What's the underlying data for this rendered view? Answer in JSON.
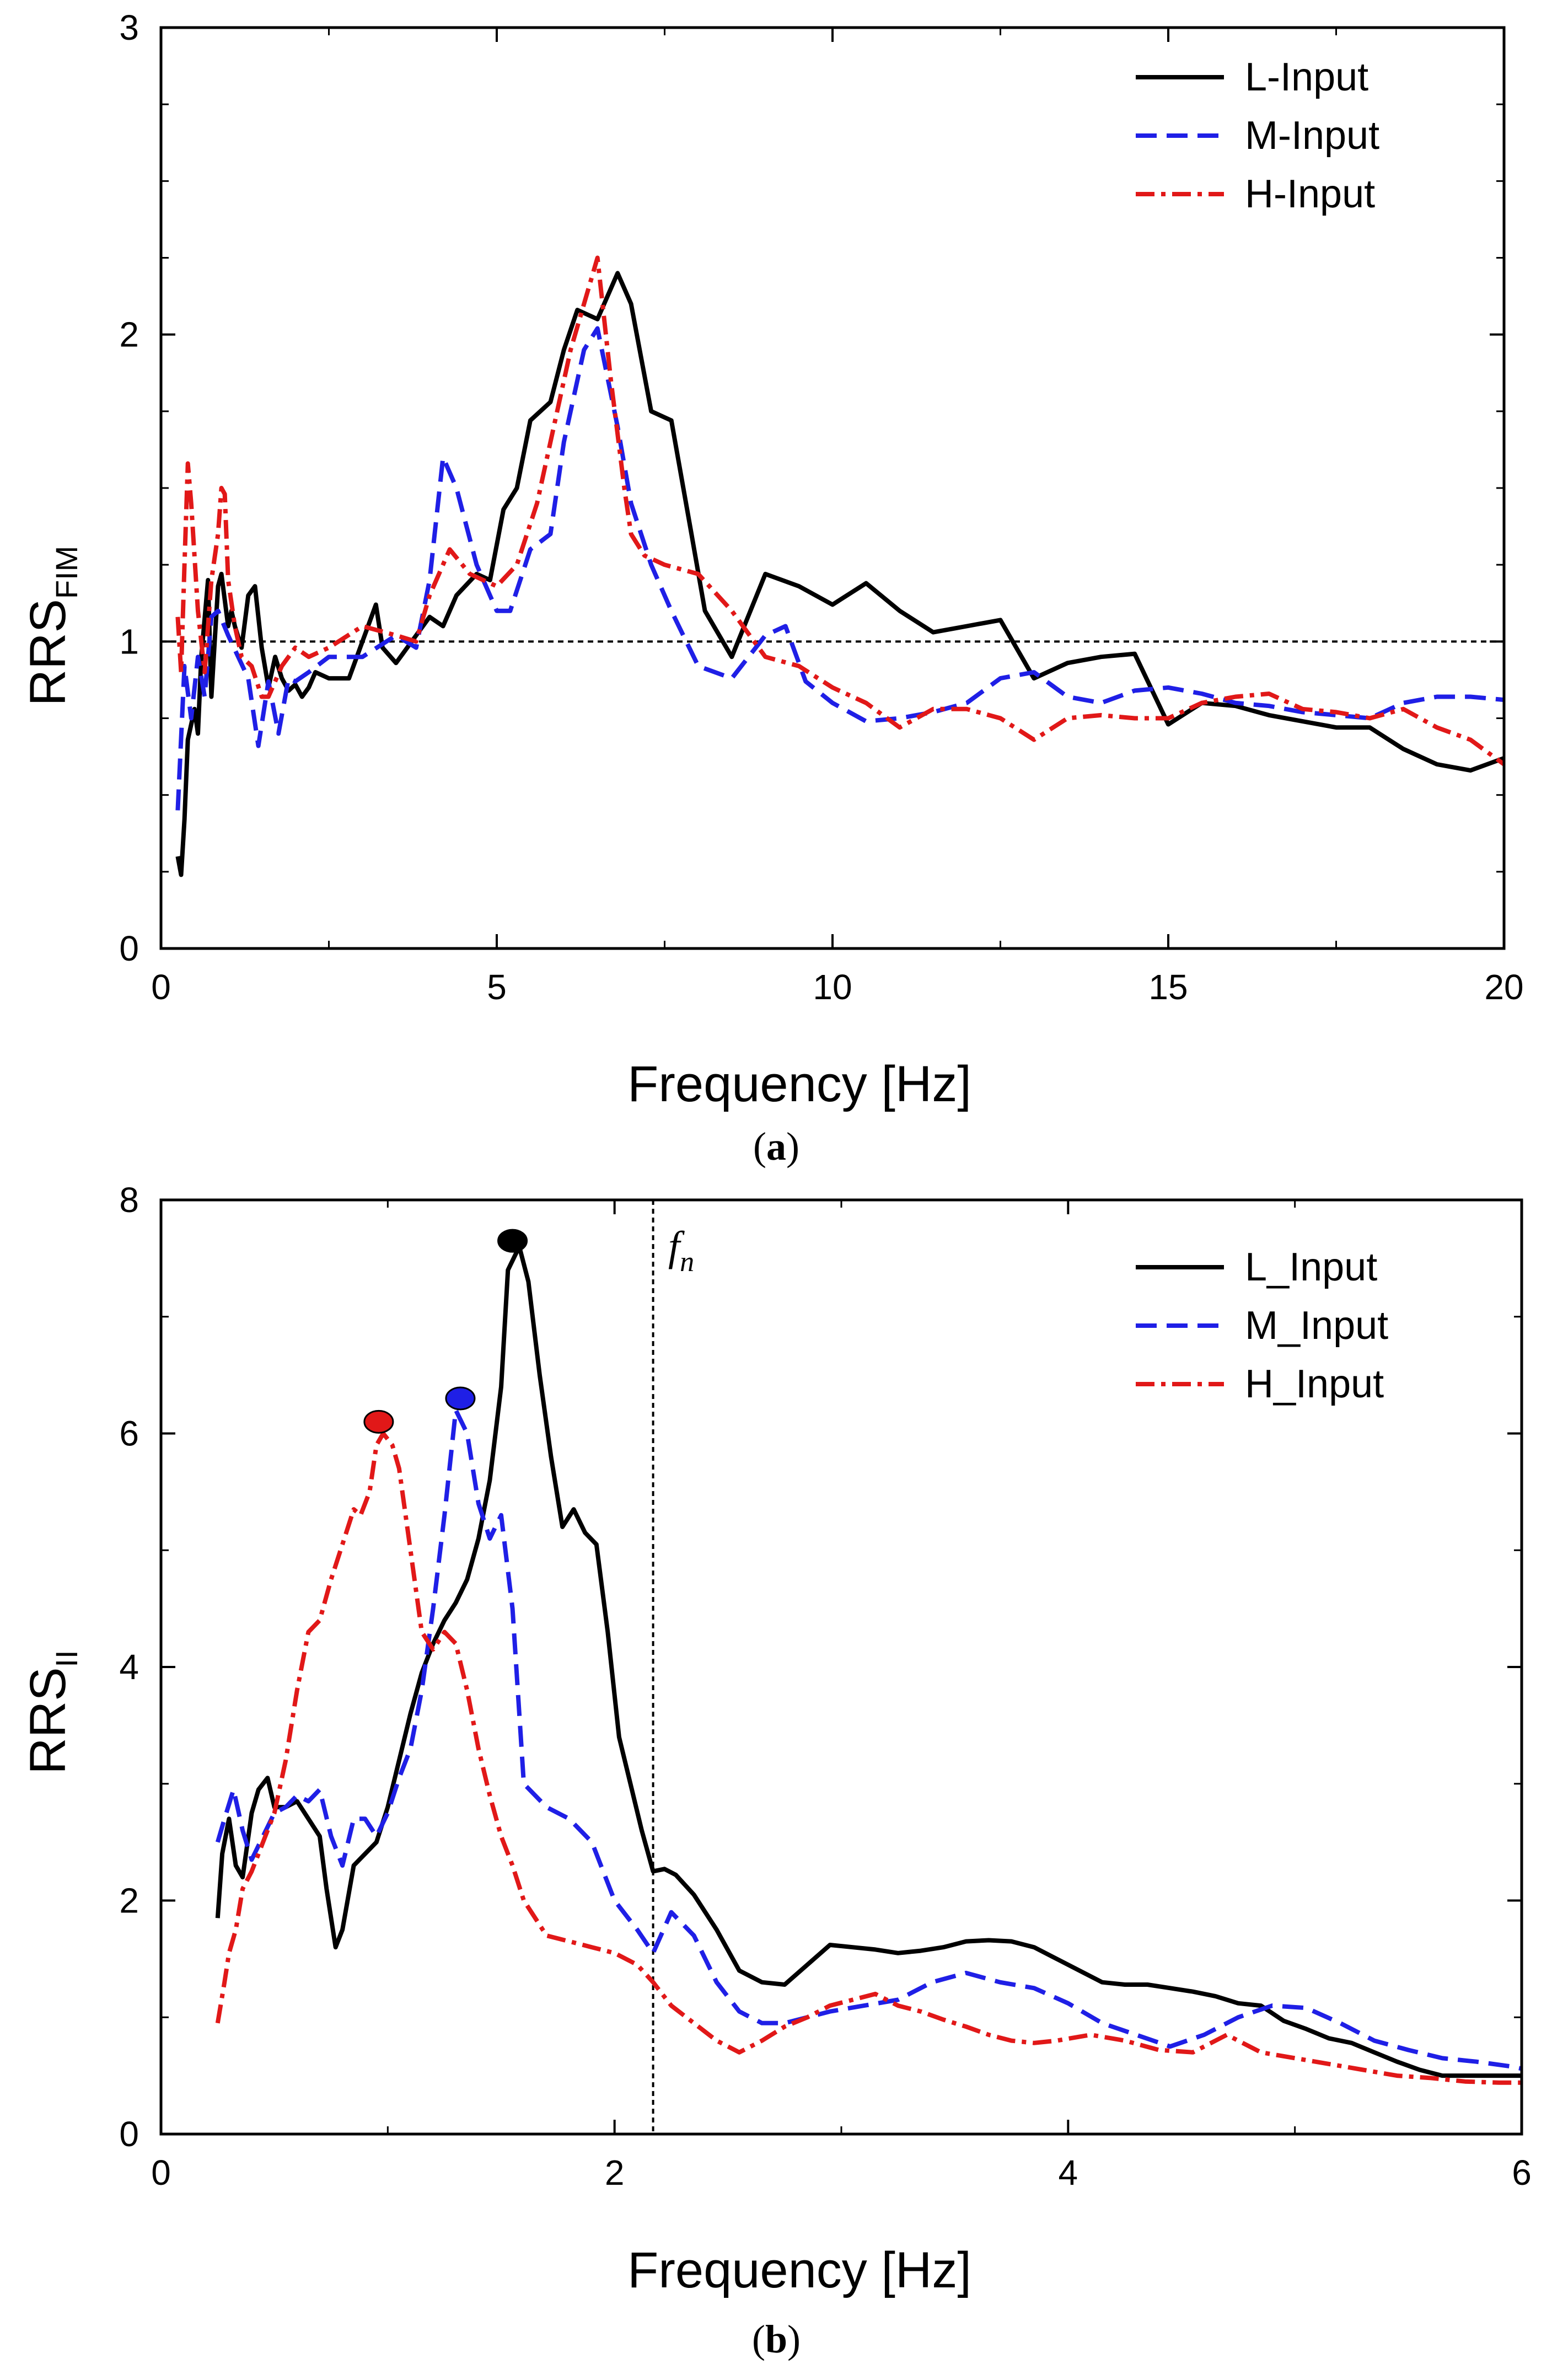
{
  "chart_data": [
    {
      "type": "line",
      "panel_label": "a",
      "xlabel": "Frequency [Hz]",
      "ylabel": {
        "main": "RRS",
        "sub": "FIM"
      },
      "xlim": [
        0,
        20
      ],
      "ylim": [
        0,
        3
      ],
      "xticks": [
        0,
        5,
        10,
        15,
        20
      ],
      "yticks": [
        0,
        1,
        2,
        3
      ],
      "reference_line": {
        "y": 1,
        "style": "dotted"
      },
      "series": [
        {
          "name": "L-Input",
          "color": "#000000",
          "dash": "solid",
          "x": [
            0.25,
            0.3,
            0.35,
            0.4,
            0.5,
            0.55,
            0.6,
            0.7,
            0.75,
            0.8,
            0.85,
            0.9,
            1.0,
            1.05,
            1.1,
            1.2,
            1.3,
            1.4,
            1.5,
            1.6,
            1.7,
            1.8,
            1.9,
            2.0,
            2.1,
            2.2,
            2.3,
            2.5,
            2.8,
            3.0,
            3.2,
            3.3,
            3.5,
            3.6,
            4.0,
            4.2,
            4.4,
            4.7,
            4.9,
            5.1,
            5.3,
            5.5,
            5.8,
            6.0,
            6.2,
            6.5,
            6.8,
            7.0,
            7.3,
            7.6,
            7.9,
            8.1,
            8.5,
            9.0,
            9.5,
            10.0,
            10.5,
            11.0,
            11.5,
            12.0,
            12.5,
            13.0,
            13.5,
            14.0,
            14.5,
            15.0,
            15.5,
            16.0,
            16.5,
            17.0,
            17.5,
            18.0,
            18.5,
            19.0,
            19.5,
            20.0
          ],
          "y": [
            0.3,
            0.24,
            0.42,
            0.68,
            0.78,
            0.7,
            0.95,
            1.2,
            0.82,
            1.0,
            1.18,
            1.22,
            1.05,
            1.1,
            1.05,
            0.98,
            1.15,
            1.18,
            0.98,
            0.85,
            0.95,
            0.88,
            0.84,
            0.86,
            0.82,
            0.85,
            0.9,
            0.88,
            0.88,
            1.0,
            1.12,
            0.98,
            0.93,
            0.96,
            1.08,
            1.05,
            1.15,
            1.22,
            1.2,
            1.43,
            1.5,
            1.72,
            1.78,
            1.95,
            2.08,
            2.05,
            2.2,
            2.1,
            1.75,
            1.72,
            1.35,
            1.1,
            0.95,
            1.22,
            1.18,
            1.12,
            1.19,
            1.1,
            1.03,
            1.05,
            1.07,
            0.88,
            0.93,
            0.95,
            0.96,
            0.73,
            0.8,
            0.79,
            0.76,
            0.74,
            0.72,
            0.72,
            0.65,
            0.6,
            0.58,
            0.62
          ]
        },
        {
          "name": "M-Input",
          "color": "#1f1fe6",
          "dash": "dashed",
          "x": [
            0.25,
            0.35,
            0.45,
            0.55,
            0.65,
            0.75,
            0.85,
            1.0,
            1.15,
            1.3,
            1.45,
            1.6,
            1.75,
            1.9,
            2.0,
            2.2,
            2.5,
            3.0,
            3.5,
            3.8,
            4.0,
            4.2,
            4.4,
            4.7,
            5.0,
            5.2,
            5.5,
            5.8,
            6.0,
            6.3,
            6.5,
            6.8,
            7.0,
            7.3,
            7.6,
            8.0,
            8.5,
            9.0,
            9.3,
            9.6,
            10.0,
            10.5,
            11.0,
            11.5,
            12.0,
            12.5,
            13.0,
            13.5,
            14.0,
            14.5,
            15.0,
            15.5,
            16.0,
            16.5,
            17.0,
            17.5,
            18.0,
            18.5,
            19.0,
            19.5,
            20.0
          ],
          "y": [
            0.45,
            0.92,
            0.75,
            0.95,
            0.82,
            1.08,
            1.1,
            1.02,
            0.95,
            0.88,
            0.66,
            0.87,
            0.7,
            0.88,
            0.87,
            0.9,
            0.95,
            0.95,
            1.02,
            0.98,
            1.2,
            1.6,
            1.5,
            1.25,
            1.1,
            1.1,
            1.3,
            1.35,
            1.65,
            1.95,
            2.02,
            1.7,
            1.45,
            1.25,
            1.1,
            0.92,
            0.88,
            1.02,
            1.05,
            0.87,
            0.8,
            0.74,
            0.75,
            0.77,
            0.8,
            0.88,
            0.9,
            0.82,
            0.8,
            0.84,
            0.85,
            0.83,
            0.8,
            0.79,
            0.77,
            0.76,
            0.75,
            0.8,
            0.82,
            0.82,
            0.81
          ]
        },
        {
          "name": "H-Input",
          "color": "#e11818",
          "dash": "dashdot",
          "x": [
            0.25,
            0.3,
            0.35,
            0.4,
            0.45,
            0.55,
            0.65,
            0.75,
            0.85,
            0.9,
            0.95,
            1.0,
            1.1,
            1.2,
            1.35,
            1.5,
            1.6,
            1.8,
            2.0,
            2.2,
            2.5,
            3.0,
            3.5,
            3.8,
            4.0,
            4.3,
            4.6,
            5.0,
            5.3,
            5.6,
            5.9,
            6.1,
            6.3,
            6.5,
            6.7,
            6.9,
            7.0,
            7.2,
            7.5,
            8.0,
            8.5,
            9.0,
            9.5,
            10.0,
            10.5,
            11.0,
            11.5,
            12.0,
            12.5,
            13.0,
            13.5,
            14.0,
            14.5,
            15.0,
            15.5,
            16.0,
            16.5,
            17.0,
            17.5,
            18.0,
            18.5,
            19.0,
            19.5,
            20.0
          ],
          "y": [
            1.08,
            0.9,
            1.25,
            1.58,
            1.45,
            1.1,
            0.9,
            1.2,
            1.35,
            1.5,
            1.48,
            1.2,
            1.05,
            0.95,
            0.92,
            0.82,
            0.82,
            0.92,
            0.98,
            0.95,
            0.98,
            1.05,
            1.02,
            1.0,
            1.15,
            1.3,
            1.22,
            1.18,
            1.25,
            1.45,
            1.75,
            1.95,
            2.1,
            2.25,
            1.85,
            1.5,
            1.35,
            1.28,
            1.25,
            1.22,
            1.1,
            0.95,
            0.92,
            0.85,
            0.8,
            0.72,
            0.78,
            0.78,
            0.75,
            0.68,
            0.75,
            0.76,
            0.75,
            0.75,
            0.8,
            0.82,
            0.83,
            0.78,
            0.77,
            0.75,
            0.78,
            0.72,
            0.68,
            0.6
          ]
        }
      ]
    },
    {
      "type": "line",
      "panel_label": "b",
      "xlabel": "Frequency [Hz]",
      "ylabel": {
        "main": "RRS",
        "sub": "II"
      },
      "xlim": [
        0,
        6
      ],
      "ylim": [
        0,
        8
      ],
      "xticks": [
        0,
        2,
        4,
        6
      ],
      "yticks": [
        0,
        2,
        4,
        6,
        8
      ],
      "vertical_line": {
        "x": 2.17,
        "label_main": "f",
        "label_sub": "n",
        "style": "dotted"
      },
      "series": [
        {
          "name": "L_Input",
          "color": "#000000",
          "dash": "solid",
          "x": [
            0.25,
            0.27,
            0.3,
            0.33,
            0.36,
            0.4,
            0.43,
            0.47,
            0.5,
            0.55,
            0.6,
            0.65,
            0.7,
            0.73,
            0.77,
            0.8,
            0.85,
            0.9,
            0.95,
            1.0,
            1.05,
            1.1,
            1.15,
            1.2,
            1.25,
            1.3,
            1.35,
            1.4,
            1.45,
            1.5,
            1.53,
            1.58,
            1.62,
            1.67,
            1.72,
            1.77,
            1.82,
            1.87,
            1.92,
            1.97,
            2.02,
            2.07,
            2.12,
            2.17,
            2.22,
            2.27,
            2.35,
            2.45,
            2.55,
            2.65,
            2.75,
            2.85,
            2.95,
            3.05,
            3.15,
            3.25,
            3.35,
            3.45,
            3.55,
            3.65,
            3.75,
            3.85,
            3.95,
            4.05,
            4.15,
            4.25,
            4.35,
            4.45,
            4.55,
            4.65,
            4.75,
            4.85,
            4.95,
            5.05,
            5.15,
            5.25,
            5.35,
            5.45,
            5.55,
            5.65,
            5.75,
            5.85,
            5.95,
            6.0
          ],
          "y": [
            1.85,
            2.4,
            2.7,
            2.3,
            2.2,
            2.75,
            2.95,
            3.05,
            2.8,
            2.8,
            2.85,
            2.7,
            2.55,
            2.1,
            1.6,
            1.75,
            2.3,
            2.4,
            2.5,
            2.8,
            3.2,
            3.6,
            3.95,
            4.2,
            4.4,
            4.55,
            4.75,
            5.1,
            5.6,
            6.4,
            7.4,
            7.6,
            7.3,
            6.5,
            5.8,
            5.2,
            5.35,
            5.15,
            5.05,
            4.3,
            3.4,
            3.0,
            2.6,
            2.25,
            2.27,
            2.22,
            2.05,
            1.75,
            1.4,
            1.3,
            1.28,
            1.45,
            1.62,
            1.6,
            1.58,
            1.55,
            1.57,
            1.6,
            1.65,
            1.66,
            1.65,
            1.6,
            1.5,
            1.4,
            1.3,
            1.28,
            1.28,
            1.25,
            1.22,
            1.18,
            1.12,
            1.1,
            0.97,
            0.9,
            0.82,
            0.78,
            0.7,
            0.62,
            0.55,
            0.5,
            0.5,
            0.5,
            0.5,
            0.5
          ]
        },
        {
          "name": "M_Input",
          "color": "#1f1fe6",
          "dash": "dashed",
          "x": [
            0.25,
            0.28,
            0.32,
            0.36,
            0.4,
            0.45,
            0.5,
            0.55,
            0.6,
            0.65,
            0.7,
            0.75,
            0.8,
            0.85,
            0.9,
            0.95,
            1.0,
            1.05,
            1.1,
            1.15,
            1.2,
            1.25,
            1.3,
            1.35,
            1.4,
            1.45,
            1.5,
            1.55,
            1.6,
            1.7,
            1.8,
            1.9,
            2.0,
            2.1,
            2.17,
            2.25,
            2.35,
            2.45,
            2.55,
            2.65,
            2.75,
            2.85,
            2.95,
            3.1,
            3.25,
            3.4,
            3.55,
            3.7,
            3.85,
            4.0,
            4.15,
            4.3,
            4.45,
            4.6,
            4.75,
            4.9,
            5.05,
            5.2,
            5.35,
            5.5,
            5.65,
            5.8,
            5.95,
            6.0
          ],
          "y": [
            2.5,
            2.7,
            2.95,
            2.6,
            2.35,
            2.55,
            2.75,
            2.8,
            2.9,
            2.85,
            2.95,
            2.55,
            2.3,
            2.7,
            2.7,
            2.55,
            2.75,
            3.05,
            3.3,
            3.8,
            4.5,
            5.3,
            6.2,
            6.0,
            5.4,
            5.1,
            5.3,
            4.5,
            3.0,
            2.8,
            2.7,
            2.5,
            2.0,
            1.75,
            1.55,
            1.9,
            1.7,
            1.3,
            1.05,
            0.95,
            0.95,
            1.0,
            1.05,
            1.1,
            1.15,
            1.3,
            1.38,
            1.3,
            1.25,
            1.12,
            0.95,
            0.85,
            0.75,
            0.85,
            1.0,
            1.1,
            1.08,
            0.95,
            0.8,
            0.72,
            0.65,
            0.62,
            0.58,
            0.56
          ]
        },
        {
          "name": "H_Input",
          "color": "#e11818",
          "dash": "dashdot",
          "x": [
            0.25,
            0.28,
            0.3,
            0.33,
            0.36,
            0.4,
            0.45,
            0.5,
            0.55,
            0.6,
            0.65,
            0.7,
            0.75,
            0.8,
            0.85,
            0.88,
            0.92,
            0.95,
            0.98,
            1.02,
            1.05,
            1.1,
            1.15,
            1.2,
            1.25,
            1.3,
            1.35,
            1.4,
            1.45,
            1.5,
            1.55,
            1.6,
            1.7,
            1.8,
            1.9,
            2.0,
            2.1,
            2.17,
            2.25,
            2.35,
            2.45,
            2.55,
            2.65,
            2.75,
            2.85,
            2.95,
            3.05,
            3.15,
            3.25,
            3.35,
            3.45,
            3.55,
            3.65,
            3.75,
            3.85,
            3.95,
            4.1,
            4.25,
            4.4,
            4.55,
            4.7,
            4.85,
            5.0,
            5.15,
            5.3,
            5.45,
            5.6,
            5.75,
            5.9,
            6.0
          ],
          "y": [
            0.95,
            1.3,
            1.55,
            1.75,
            2.1,
            2.25,
            2.5,
            2.75,
            3.2,
            3.8,
            4.3,
            4.4,
            4.75,
            5.05,
            5.35,
            5.3,
            5.5,
            5.9,
            6.0,
            5.9,
            5.7,
            5.0,
            4.3,
            4.15,
            4.3,
            4.2,
            3.8,
            3.3,
            2.9,
            2.55,
            2.3,
            2.0,
            1.7,
            1.65,
            1.6,
            1.55,
            1.45,
            1.3,
            1.1,
            0.95,
            0.8,
            0.7,
            0.8,
            0.92,
            1.0,
            1.1,
            1.15,
            1.2,
            1.1,
            1.05,
            0.98,
            0.92,
            0.85,
            0.8,
            0.78,
            0.8,
            0.85,
            0.8,
            0.72,
            0.7,
            0.85,
            0.7,
            0.65,
            0.6,
            0.55,
            0.5,
            0.48,
            0.45,
            0.44,
            0.44
          ]
        }
      ],
      "peak_markers": [
        {
          "series": "L_Input",
          "x": 1.55,
          "y": 7.65,
          "color": "#000000"
        },
        {
          "series": "M_Input",
          "x": 1.32,
          "y": 6.3,
          "color": "#1f1fe6"
        },
        {
          "series": "H_Input",
          "x": 0.96,
          "y": 6.1,
          "color": "#e11818"
        }
      ]
    }
  ]
}
